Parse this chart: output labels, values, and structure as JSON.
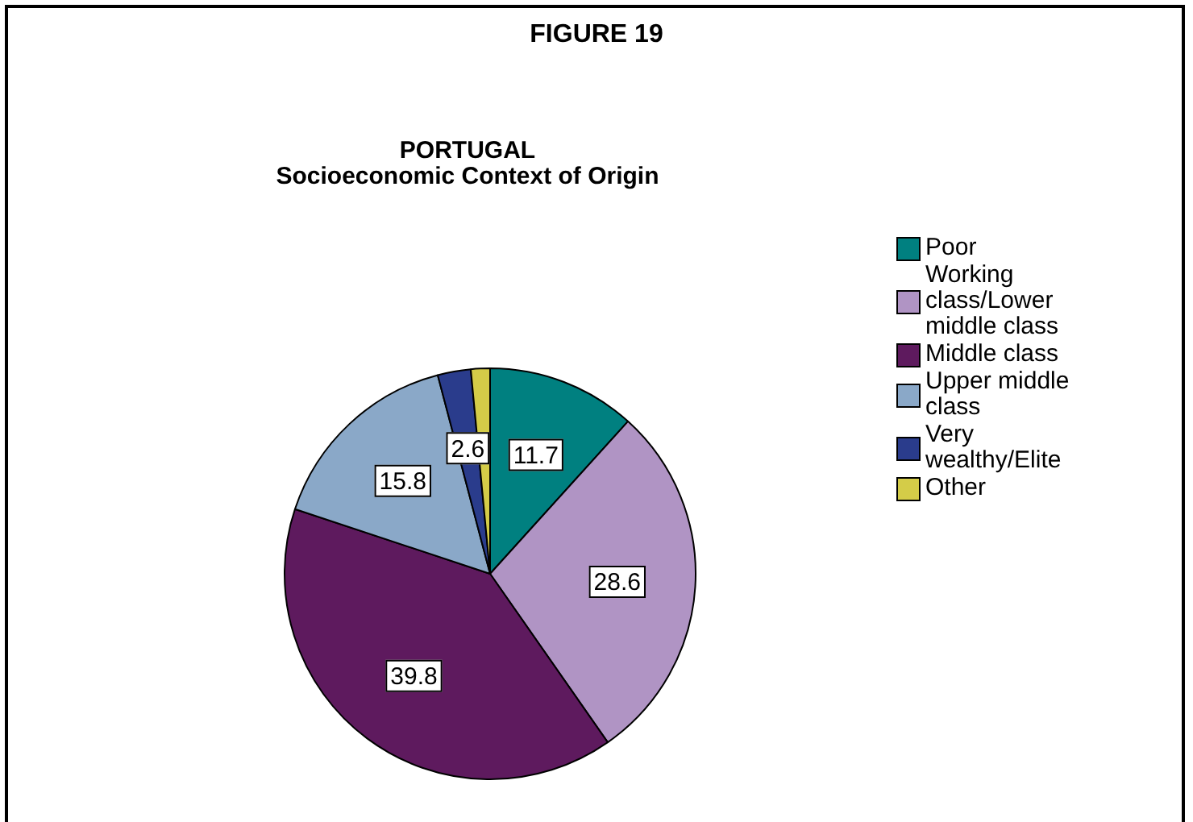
{
  "chart_data": {
    "type": "pie",
    "title": "FIGURE 19",
    "subtitle": "PORTUGAL\nSocioeconomic Context of Origin",
    "categories": [
      "Poor",
      "Working class/Lower middle class",
      "Middle class",
      "Upper middle class",
      "Very wealthy/Elite",
      "Other"
    ],
    "values": [
      11.7,
      28.6,
      39.8,
      15.8,
      2.6,
      1.5
    ],
    "colors": [
      "#008080",
      "#b094c4",
      "#5e1a5e",
      "#8aa8c8",
      "#2a3c8c",
      "#d4cc48"
    ],
    "value_labels": [
      "11.7",
      "28.6",
      "39.8",
      "15.8",
      "2.6",
      null
    ],
    "legend": "right"
  }
}
